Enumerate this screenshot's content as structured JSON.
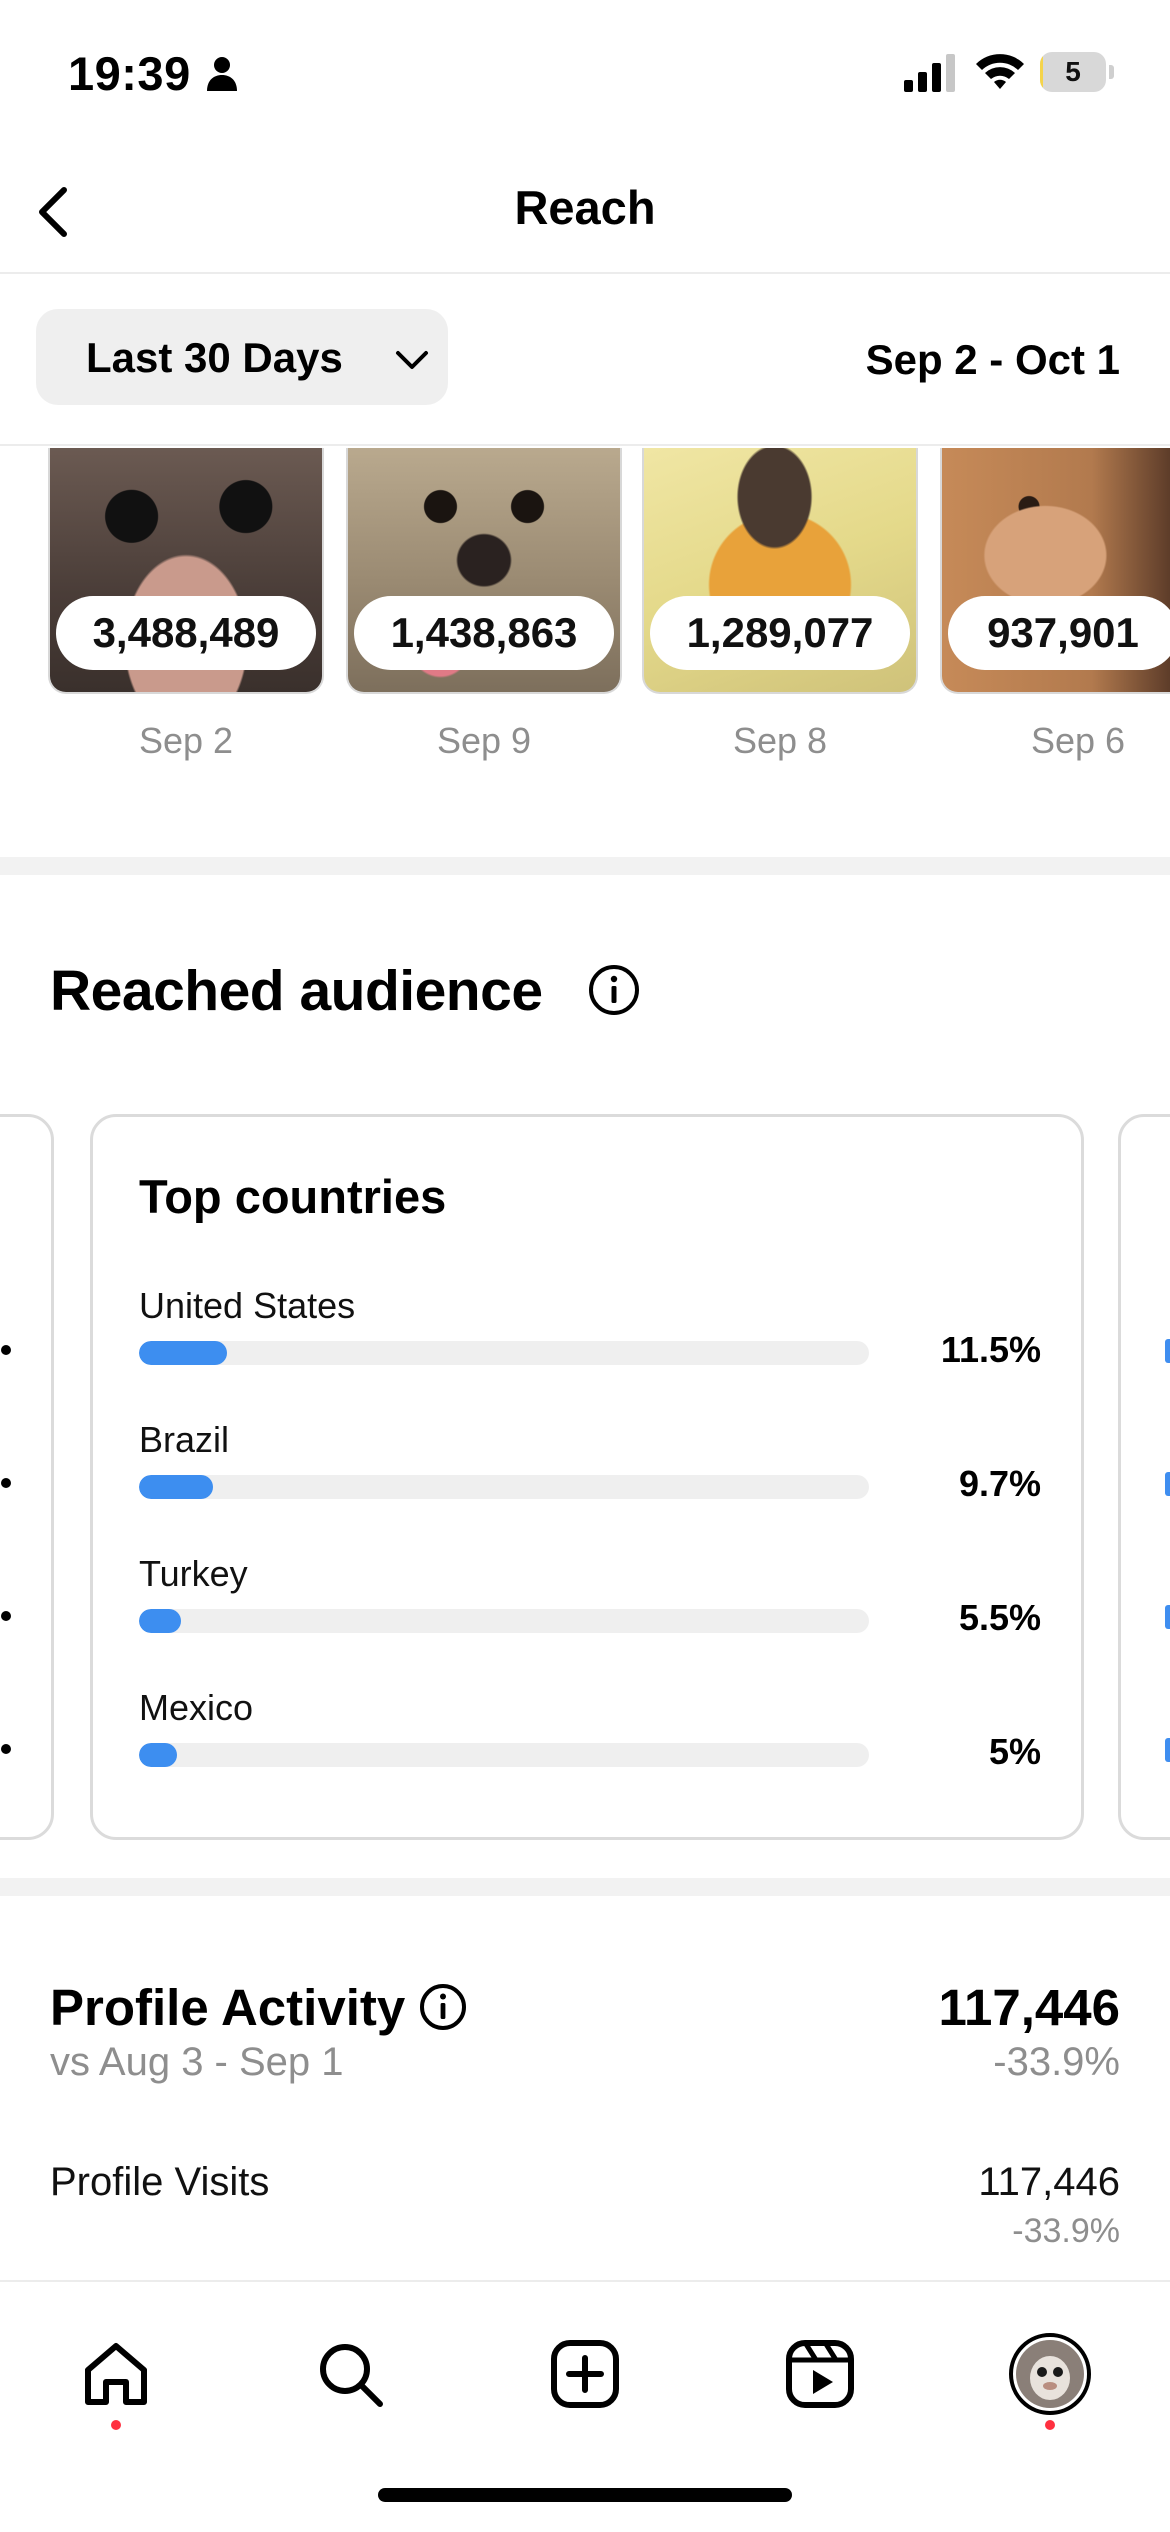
{
  "status_bar": {
    "time": "19:39",
    "battery_level": "5",
    "battery_fraction": 0.05,
    "icons": [
      "person-icon",
      "signal-icon",
      "wifi-icon",
      "battery-icon"
    ]
  },
  "header": {
    "title": "Reach",
    "back_icon": "chevron-left-icon"
  },
  "filter": {
    "range_label": "Last 30 Days",
    "date_range": "Sep 2 - Oct 1"
  },
  "content_items": [
    {
      "count": "3,488,489",
      "date": "Sep 2"
    },
    {
      "count": "1,438,863",
      "date": "Sep 9"
    },
    {
      "count": "1,289,077",
      "date": "Sep 8"
    },
    {
      "count": "937,901",
      "date": "Sep 6"
    }
  ],
  "reached_audience": {
    "heading": "Reached audience",
    "top_countries": {
      "title": "Top countries",
      "rows": [
        {
          "name": "United States",
          "percent": "11.5%",
          "value": 11.5
        },
        {
          "name": "Brazil",
          "percent": "9.7%",
          "value": 9.7
        },
        {
          "name": "Turkey",
          "percent": "5.5%",
          "value": 5.5
        },
        {
          "name": "Mexico",
          "percent": "5%",
          "value": 5
        }
      ]
    }
  },
  "profile_activity": {
    "title": "Profile Activity",
    "comparison": "vs Aug 3 - Sep 1",
    "total": "117,446",
    "change": "-33.9%",
    "visits_label": "Profile Visits",
    "visits_value": "117,446",
    "visits_change": "-33.9%"
  },
  "tab_bar": {
    "items": [
      "home-icon",
      "search-icon",
      "create-icon",
      "reels-icon",
      "profile-avatar"
    ],
    "accent_color": "#ff3040"
  },
  "colors": {
    "bar_fill": "#3d8ef0",
    "bar_track": "#efefef",
    "muted_text": "#8e8e8e"
  }
}
